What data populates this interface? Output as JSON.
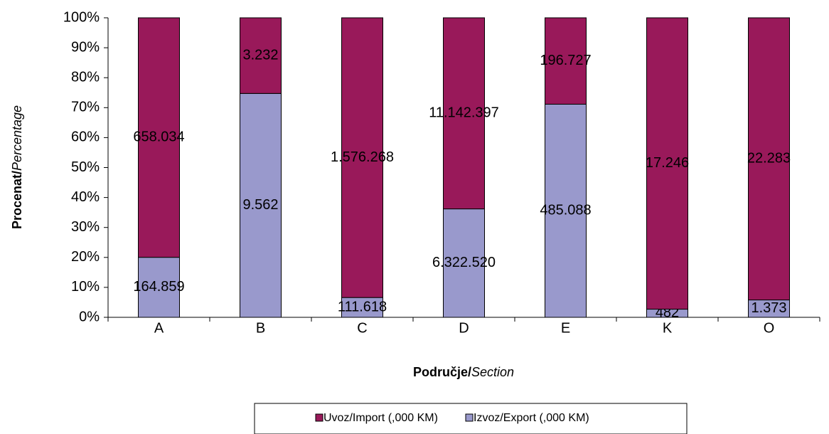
{
  "chart_data": {
    "type": "bar",
    "stack": "percent",
    "categories": [
      "A",
      "B",
      "C",
      "D",
      "E",
      "K",
      "O"
    ],
    "series": [
      {
        "name": "Uvoz/Import (,000 KM)",
        "color": "#99195a",
        "values": [
          658034,
          3232,
          1576268,
          11142397,
          196727,
          17246,
          22283
        ],
        "value_labels": [
          "658.034",
          "3.232",
          "1.576.268",
          "11.142.397",
          "196.727",
          "17.246",
          "22.283"
        ]
      },
      {
        "name": "Izvoz/Export (,000 KM)",
        "color": "#9999cc",
        "values": [
          164859,
          9562,
          111618,
          6322520,
          485088,
          482,
          1373
        ],
        "value_labels": [
          "164.859",
          "9.562",
          "111.618",
          "6.322.520",
          "485.088",
          "482",
          "1.373"
        ]
      }
    ],
    "ylim": [
      0,
      100
    ],
    "yticks": [
      {
        "value": 0,
        "label": "0%"
      },
      {
        "value": 10,
        "label": "10%"
      },
      {
        "value": 20,
        "label": "20%"
      },
      {
        "value": 30,
        "label": "30%"
      },
      {
        "value": 40,
        "label": "40%"
      },
      {
        "value": 50,
        "label": "50%"
      },
      {
        "value": 60,
        "label": "60%"
      },
      {
        "value": 70,
        "label": "70%"
      },
      {
        "value": 80,
        "label": "80%"
      },
      {
        "value": 90,
        "label": "90%"
      },
      {
        "value": 100,
        "label": "100%"
      }
    ],
    "ylabel": [
      "Procenat/",
      "Percentage"
    ],
    "xlabel": [
      "Područje/",
      "Section"
    ],
    "grid": false,
    "legend": "bottom"
  }
}
